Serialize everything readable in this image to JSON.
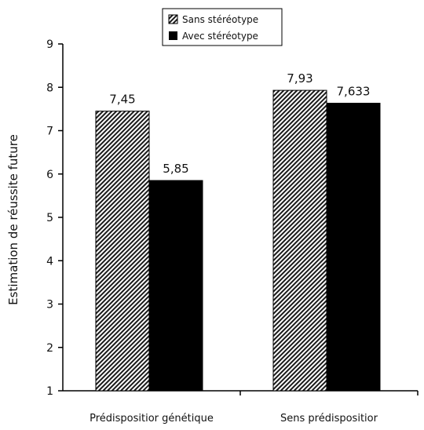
{
  "chart_data": {
    "type": "bar",
    "categories": [
      "Prédispositior génétique",
      "Sens prédispositior"
    ],
    "series": [
      {
        "name": "Sans stéréotype",
        "values": [
          7.45,
          7.93
        ],
        "labels": [
          "7,45",
          "7,93"
        ],
        "fill": "hatched"
      },
      {
        "name": "Avec stéréotype",
        "values": [
          5.85,
          7.633
        ],
        "labels": [
          "5,85",
          "7,633"
        ],
        "fill": "#000000"
      }
    ],
    "title": "",
    "xlabel": "",
    "ylabel": "Estimation de réussite future",
    "ylim": [
      1,
      9
    ],
    "yticks": [
      1,
      2,
      3,
      4,
      5,
      6,
      7,
      8,
      9
    ],
    "grid": false,
    "legend_position": "top-center"
  }
}
